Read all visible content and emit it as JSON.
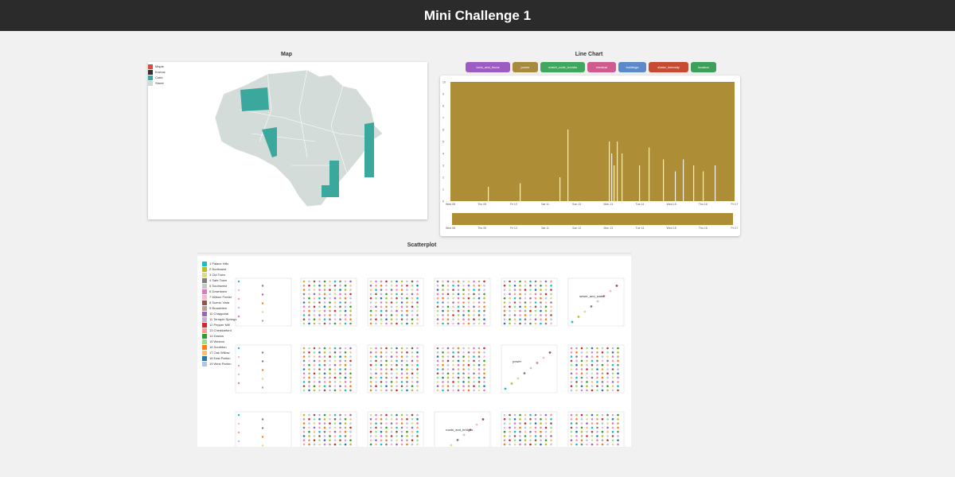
{
  "header": {
    "title": "Mini Challenge 1"
  },
  "map": {
    "title": "Map",
    "legend": [
      {
        "label": "Maple",
        "color": "#d0513e"
      },
      {
        "label": "Kronos",
        "color": "#333333"
      },
      {
        "label": "Cobb",
        "color": "#3aa89d"
      },
      {
        "label": "Street",
        "color": "#cfd8d3"
      }
    ],
    "colors": {
      "region": "#d3dcd8",
      "highlight": "#3aa89d"
    }
  },
  "linechart": {
    "title": "Line Chart",
    "buttons": [
      {
        "label": "toxic_and_focus",
        "color": "#9d5cc4"
      },
      {
        "label": "power",
        "color": "#a88a3c"
      },
      {
        "label": "match_code_bombs",
        "color": "#3fa85e"
      },
      {
        "label": "medical",
        "color": "#d05b8e"
      },
      {
        "label": "buildings",
        "color": "#5b89c9"
      },
      {
        "label": "shake_intensity",
        "color": "#c84a33"
      },
      {
        "label": "location",
        "color": "#3da05a"
      }
    ],
    "area_color": "#ad8e36",
    "x_ticks": [
      "Wed 08",
      "Thu 09",
      "Fri 10",
      "Sat 11",
      "Sun 12",
      "Mon 13",
      "Tue 14",
      "Wed 15",
      "Thu 16",
      "Fri 17"
    ],
    "y_ticks": [
      "0",
      "1",
      "2",
      "3",
      "4",
      "5",
      "6",
      "7",
      "8",
      "9",
      "10"
    ]
  },
  "scatter": {
    "title": "Scatterplot",
    "legend": [
      {
        "label": "1 Palace Hills",
        "color": "#17becf"
      },
      {
        "label": "2 Northwest",
        "color": "#bcbd22"
      },
      {
        "label": "3 Old Town",
        "color": "#dbdb8d"
      },
      {
        "label": "4 Safe Town",
        "color": "#7f7f7f"
      },
      {
        "label": "5 Southwest",
        "color": "#c7c7c7"
      },
      {
        "label": "6 Downtown",
        "color": "#e377c2"
      },
      {
        "label": "7 Wilson Forest",
        "color": "#f7b6d2"
      },
      {
        "label": "8 Scenic Vista",
        "color": "#8c564b"
      },
      {
        "label": "9 Broadview",
        "color": "#c49c94"
      },
      {
        "label": "10 Chapparal",
        "color": "#9467bd"
      },
      {
        "label": "11 Terrapin Springs",
        "color": "#c5b0d5"
      },
      {
        "label": "12 Pepper Mill",
        "color": "#d62728"
      },
      {
        "label": "13 Cheddarford",
        "color": "#ff9896"
      },
      {
        "label": "14 Easton",
        "color": "#2ca02c"
      },
      {
        "label": "15 Weston",
        "color": "#98df8a"
      },
      {
        "label": "16 Southton",
        "color": "#ff7f0e"
      },
      {
        "label": "17 Oak Willow",
        "color": "#ffbb78"
      },
      {
        "label": "18 East Parton",
        "color": "#1f77b4"
      },
      {
        "label": "19 West Parton",
        "color": "#aec7e8"
      }
    ],
    "diagonal_labels": [
      "sewer_and_water",
      "power",
      "roads_and_bridges"
    ]
  }
}
